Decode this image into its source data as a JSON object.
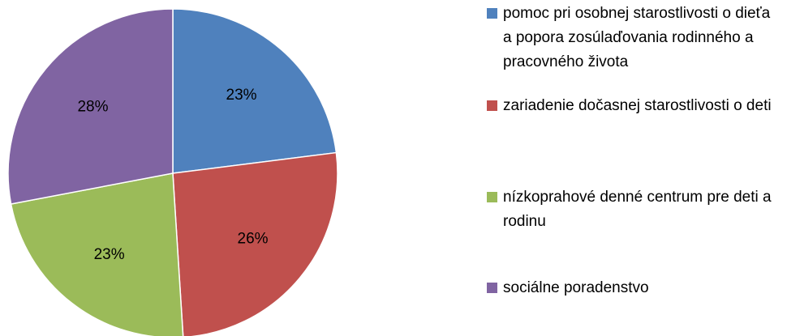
{
  "chart_data": {
    "type": "pie",
    "categories": [
      "pomoc pri osobnej starostlivosti o dieťa a popora zosúlaďovania rodinného a pracovného života",
      "zariadenie dočasnej starostlivosti o deti",
      "nízkoprahové denné centrum pre deti a rodinu",
      "sociálne poradenstvo"
    ],
    "values": [
      23,
      26,
      23,
      28
    ],
    "value_labels": [
      "23%",
      "26%",
      "23%",
      "28%"
    ],
    "colors": [
      "#4f81bd",
      "#c0504d",
      "#9bbb59",
      "#8064a2"
    ],
    "legend": "right"
  }
}
